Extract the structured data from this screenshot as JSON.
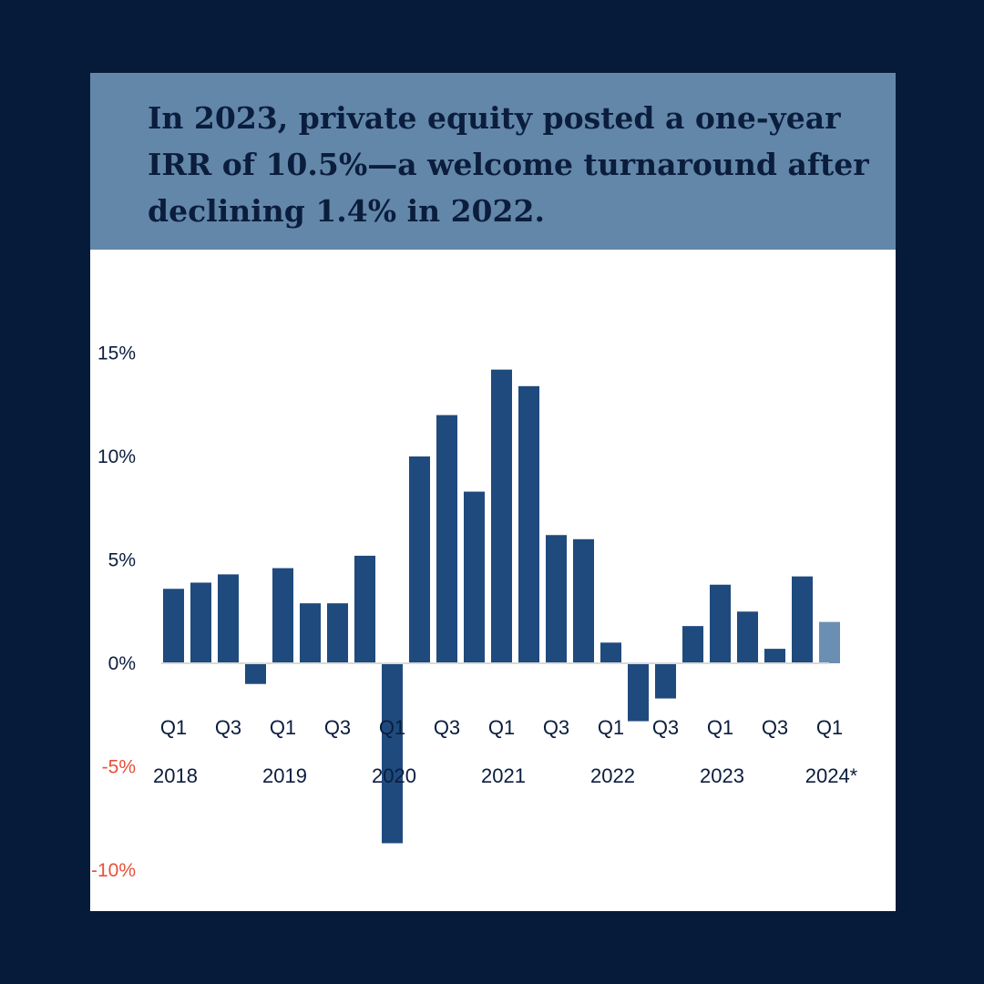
{
  "title": "In 2023, private equity posted a one-year IRR of 10.5%—a welcome turnaround after declining 1.4% in 2022.",
  "colors": {
    "background": "#061b39",
    "title_band": "#6387a9",
    "bar": "#1f4a7d",
    "bar_preliminary": "#6b8fb3",
    "negative_label": "#e8503a",
    "text": "#0b1d3d"
  },
  "chart_data": {
    "type": "bar",
    "title": "",
    "xlabel": "",
    "ylabel": "",
    "ylim": [
      -10,
      15
    ],
    "yticks": [
      15,
      10,
      5,
      0,
      -5,
      -10
    ],
    "ytick_labels": [
      "15%",
      "10%",
      "5%",
      "0%",
      "-5%",
      "-10%"
    ],
    "categories": [
      "2018 Q1",
      "2018 Q2",
      "2018 Q3",
      "2018 Q4",
      "2019 Q1",
      "2019 Q2",
      "2019 Q3",
      "2019 Q4",
      "2020 Q1",
      "2020 Q2",
      "2020 Q3",
      "2020 Q4",
      "2021 Q1",
      "2021 Q2",
      "2021 Q3",
      "2021 Q4",
      "2022 Q1",
      "2022 Q2",
      "2022 Q3",
      "2022 Q4",
      "2023 Q1",
      "2023 Q2",
      "2023 Q3",
      "2023 Q4",
      "2024 Q1"
    ],
    "values": [
      3.6,
      3.9,
      4.3,
      -1.0,
      4.6,
      2.9,
      2.9,
      5.2,
      -8.7,
      10.0,
      12.0,
      8.3,
      14.2,
      13.4,
      6.2,
      6.0,
      1.0,
      -2.8,
      -1.7,
      1.8,
      3.8,
      2.5,
      0.7,
      4.2,
      2.0
    ],
    "preliminary": [
      false,
      false,
      false,
      false,
      false,
      false,
      false,
      false,
      false,
      false,
      false,
      false,
      false,
      false,
      false,
      false,
      false,
      false,
      false,
      false,
      false,
      false,
      false,
      false,
      true
    ],
    "quarter_labels": [
      "Q1",
      "Q3",
      "Q1",
      "Q3",
      "Q1",
      "Q3",
      "Q1",
      "Q3",
      "Q1",
      "Q3",
      "Q1",
      "Q3",
      "Q1"
    ],
    "year_labels": [
      "2018",
      "2019",
      "2020",
      "2021",
      "2022",
      "2023",
      "2024*"
    ]
  }
}
